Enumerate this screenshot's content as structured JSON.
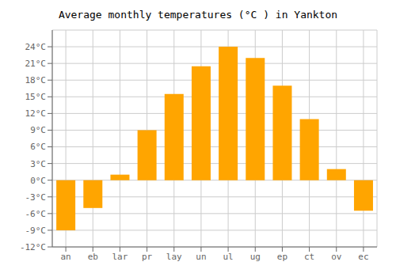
{
  "chart_data": {
    "type": "bar",
    "title": "Average monthly temperatures (°C ) in Yankton",
    "categories": [
      "an",
      "eb",
      "lar",
      "pr",
      "lay",
      "un",
      "ul",
      "ug",
      "ep",
      "ct",
      "ov",
      "ec"
    ],
    "values": [
      -9,
      -5,
      1,
      9,
      15.5,
      20.5,
      24,
      22,
      17,
      11,
      2,
      -5.5
    ],
    "color": "#FFA500",
    "ylim": [
      -12,
      27
    ],
    "yticks": [
      {
        "value": -12,
        "label": "-12°C"
      },
      {
        "value": -9,
        "label": "-9°C"
      },
      {
        "value": -6,
        "label": "-6°C"
      },
      {
        "value": -3,
        "label": "-3°C"
      },
      {
        "value": 0,
        "label": "0°C"
      },
      {
        "value": 3,
        "label": "3°C"
      },
      {
        "value": 6,
        "label": "6°C"
      },
      {
        "value": 9,
        "label": "9°C"
      },
      {
        "value": 12,
        "label": "12°C"
      },
      {
        "value": 15,
        "label": "15°C"
      },
      {
        "value": 18,
        "label": "18°C"
      },
      {
        "value": 21,
        "label": "21°C"
      },
      {
        "value": 24,
        "label": "24°C"
      }
    ],
    "grid": true
  }
}
